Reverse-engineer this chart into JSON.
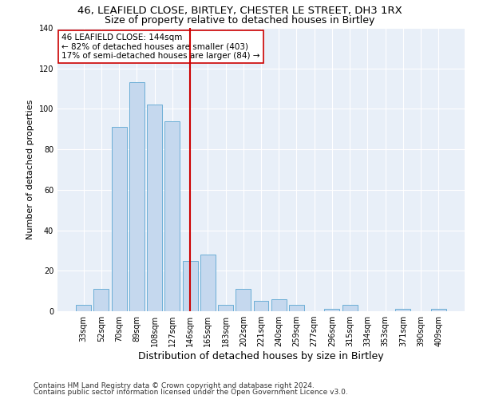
{
  "title_line1": "46, LEAFIELD CLOSE, BIRTLEY, CHESTER LE STREET, DH3 1RX",
  "title_line2": "Size of property relative to detached houses in Birtley",
  "xlabel": "Distribution of detached houses by size in Birtley",
  "ylabel": "Number of detached properties",
  "bar_labels": [
    "33sqm",
    "52sqm",
    "70sqm",
    "89sqm",
    "108sqm",
    "127sqm",
    "146sqm",
    "165sqm",
    "183sqm",
    "202sqm",
    "221sqm",
    "240sqm",
    "259sqm",
    "277sqm",
    "296sqm",
    "315sqm",
    "334sqm",
    "353sqm",
    "371sqm",
    "390sqm",
    "409sqm"
  ],
  "bar_values": [
    3,
    11,
    91,
    113,
    102,
    94,
    25,
    28,
    3,
    11,
    5,
    6,
    3,
    0,
    1,
    3,
    0,
    0,
    1,
    0,
    1
  ],
  "bar_color": "#c5d8ee",
  "bar_edge_color": "#6baed6",
  "bg_color": "#e8eff8",
  "vline_x_index": 6,
  "vline_color": "#cc0000",
  "annotation_line1": "46 LEAFIELD CLOSE: 144sqm",
  "annotation_line2": "← 82% of detached houses are smaller (403)",
  "annotation_line3": "17% of semi-detached houses are larger (84) →",
  "annotation_box_color": "white",
  "annotation_box_edge_color": "#cc0000",
  "ylim": [
    0,
    140
  ],
  "yticks": [
    0,
    20,
    40,
    60,
    80,
    100,
    120,
    140
  ],
  "footer_line1": "Contains HM Land Registry data © Crown copyright and database right 2024.",
  "footer_line2": "Contains public sector information licensed under the Open Government Licence v3.0.",
  "title_fontsize": 9.5,
  "subtitle_fontsize": 9,
  "xlabel_fontsize": 9,
  "ylabel_fontsize": 8,
  "tick_fontsize": 7,
  "annotation_fontsize": 7.5,
  "footer_fontsize": 6.5,
  "grid_color": "white",
  "grid_linewidth": 0.8
}
